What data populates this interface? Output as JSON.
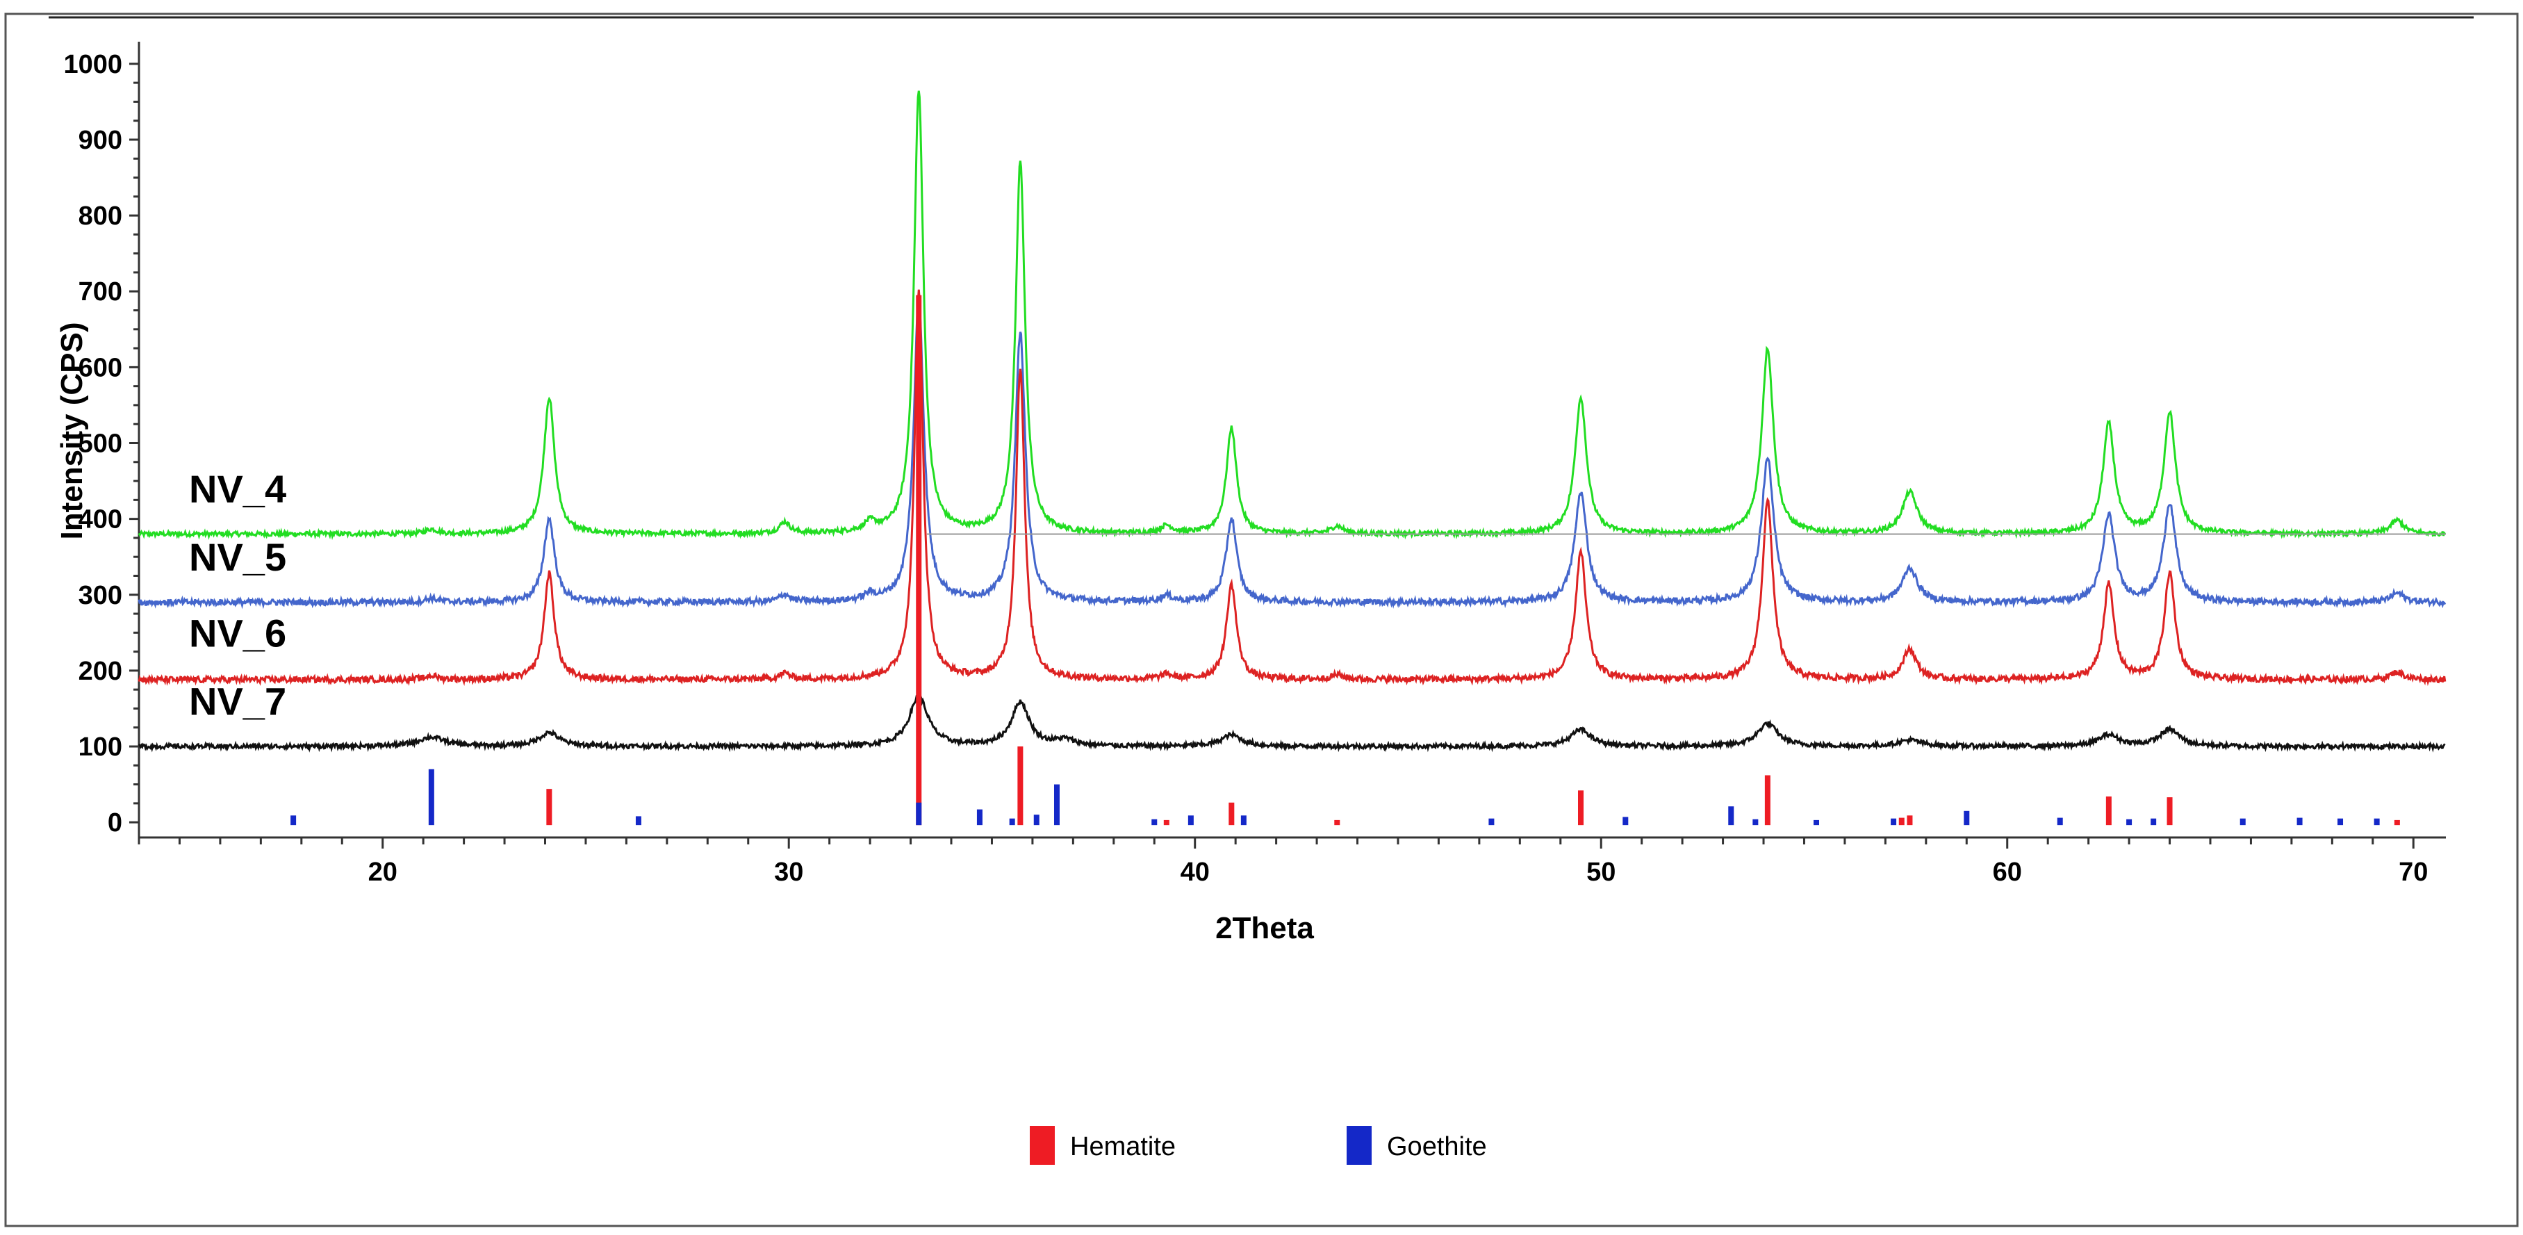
{
  "chart_data": {
    "type": "line",
    "xlabel": "2Theta",
    "ylabel": "Intensity (CPS)",
    "xlim": [
      14,
      70.8
    ],
    "ylim": [
      -20,
      1020
    ],
    "x_ticks": [
      20,
      30,
      40,
      50,
      60,
      70
    ],
    "y_ticks": [
      0,
      100,
      200,
      300,
      400,
      500,
      600,
      700,
      800,
      900,
      1000
    ],
    "grid": false,
    "legend_placement": "bottom-center",
    "series": [
      {
        "name": "NV_4",
        "color": "#22dd22",
        "baseline": 380,
        "noise": 3,
        "label_y": 440,
        "peaks": [
          [
            21.2,
            6,
            0.18
          ],
          [
            24.1,
            180,
            0.16
          ],
          [
            29.9,
            15,
            0.15
          ],
          [
            32.0,
            12,
            0.18
          ],
          [
            33.2,
            585,
            0.14
          ],
          [
            35.7,
            490,
            0.14
          ],
          [
            39.3,
            10,
            0.18
          ],
          [
            40.9,
            140,
            0.15
          ],
          [
            43.5,
            10,
            0.18
          ],
          [
            49.5,
            180,
            0.17
          ],
          [
            54.1,
            245,
            0.17
          ],
          [
            57.6,
            55,
            0.22
          ],
          [
            62.5,
            145,
            0.17
          ],
          [
            64.0,
            160,
            0.17
          ],
          [
            69.6,
            18,
            0.2
          ]
        ]
      },
      {
        "name": "NV_5",
        "color": "#4466cc",
        "baseline": 290,
        "noise": 4,
        "label_y": 350,
        "peaks": [
          [
            21.2,
            5,
            0.18
          ],
          [
            24.1,
            110,
            0.16
          ],
          [
            29.9,
            10,
            0.15
          ],
          [
            32.0,
            8,
            0.18
          ],
          [
            33.2,
            400,
            0.15
          ],
          [
            35.7,
            355,
            0.15
          ],
          [
            39.3,
            8,
            0.18
          ],
          [
            40.9,
            110,
            0.16
          ],
          [
            49.5,
            145,
            0.18
          ],
          [
            54.1,
            190,
            0.18
          ],
          [
            57.6,
            45,
            0.22
          ],
          [
            62.5,
            115,
            0.18
          ],
          [
            64.0,
            130,
            0.18
          ],
          [
            69.6,
            12,
            0.2
          ]
        ]
      },
      {
        "name": "NV_6",
        "color": "#dd2222",
        "baseline": 188,
        "noise": 4,
        "label_y": 250,
        "peaks": [
          [
            21.2,
            5,
            0.18
          ],
          [
            24.1,
            140,
            0.15
          ],
          [
            29.9,
            8,
            0.15
          ],
          [
            33.2,
            510,
            0.13
          ],
          [
            35.7,
            410,
            0.13
          ],
          [
            39.3,
            6,
            0.18
          ],
          [
            40.9,
            125,
            0.15
          ],
          [
            43.5,
            6,
            0.18
          ],
          [
            49.5,
            168,
            0.16
          ],
          [
            54.1,
            235,
            0.16
          ],
          [
            57.6,
            40,
            0.2
          ],
          [
            62.5,
            125,
            0.16
          ],
          [
            64.0,
            140,
            0.16
          ],
          [
            69.6,
            10,
            0.2
          ]
        ]
      },
      {
        "name": "NV_7",
        "color": "#111111",
        "baseline": 100,
        "noise": 3,
        "label_y": 160,
        "peaks": [
          [
            21.2,
            12,
            0.4
          ],
          [
            24.1,
            18,
            0.3
          ],
          [
            33.2,
            65,
            0.28
          ],
          [
            35.7,
            58,
            0.26
          ],
          [
            36.8,
            8,
            0.3
          ],
          [
            40.9,
            15,
            0.3
          ],
          [
            49.5,
            22,
            0.3
          ],
          [
            54.1,
            30,
            0.3
          ],
          [
            57.6,
            8,
            0.35
          ],
          [
            62.5,
            15,
            0.3
          ],
          [
            64.0,
            22,
            0.3
          ]
        ]
      }
    ],
    "reference_patterns": [
      {
        "name": "Hematite",
        "color": "#ee1c24",
        "lines": [
          [
            24.1,
            44
          ],
          [
            33.2,
            695
          ],
          [
            35.7,
            100
          ],
          [
            39.3,
            3
          ],
          [
            40.9,
            26
          ],
          [
            43.5,
            3
          ],
          [
            49.5,
            42
          ],
          [
            54.1,
            62
          ],
          [
            57.4,
            6
          ],
          [
            57.6,
            9
          ],
          [
            62.5,
            34
          ],
          [
            64.0,
            33
          ],
          [
            69.6,
            3
          ]
        ]
      },
      {
        "name": "Goethite",
        "color": "#1428c8",
        "lines": [
          [
            17.8,
            9
          ],
          [
            21.2,
            70
          ],
          [
            26.3,
            8
          ],
          [
            33.2,
            26
          ],
          [
            34.7,
            17
          ],
          [
            35.5,
            5
          ],
          [
            36.1,
            10
          ],
          [
            36.6,
            50
          ],
          [
            39.0,
            4
          ],
          [
            39.9,
            9
          ],
          [
            41.2,
            9
          ],
          [
            47.3,
            5
          ],
          [
            50.6,
            7
          ],
          [
            53.2,
            21
          ],
          [
            53.8,
            4
          ],
          [
            55.3,
            3
          ],
          [
            57.2,
            5
          ],
          [
            59.0,
            15
          ],
          [
            61.3,
            6
          ],
          [
            63.0,
            4
          ],
          [
            63.6,
            5
          ],
          [
            65.8,
            5
          ],
          [
            67.2,
            6
          ],
          [
            68.2,
            5
          ],
          [
            69.1,
            5
          ]
        ]
      }
    ]
  }
}
